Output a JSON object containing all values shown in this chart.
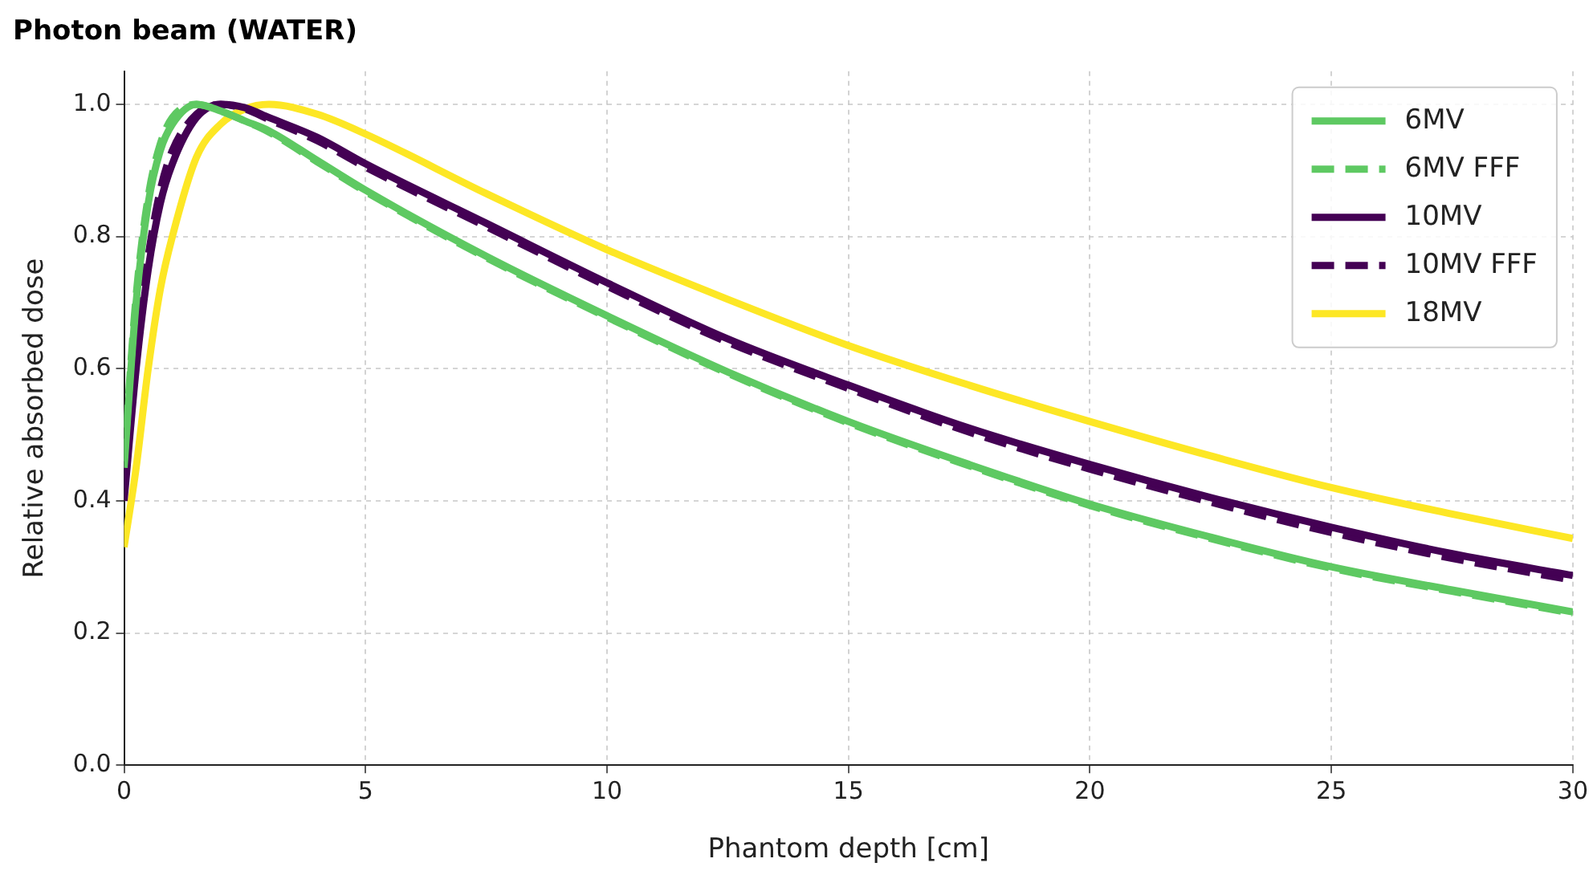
{
  "chart_data": {
    "type": "line",
    "title": "Photon beam (WATER)",
    "xlabel": "Phantom depth [cm]",
    "ylabel": "Relative absorbed dose",
    "x": [
      0,
      0.25,
      0.5,
      0.75,
      1,
      1.5,
      2,
      2.5,
      3,
      4,
      5,
      7.5,
      10,
      12.5,
      15,
      17.5,
      20,
      22.5,
      25,
      27.5,
      30
    ],
    "series": [
      {
        "name": "6MV",
        "color": "#5ec962",
        "line_style": "solid",
        "values": [
          0.45,
          0.7,
          0.85,
          0.93,
          0.97,
          1.0,
          0.99,
          0.975,
          0.96,
          0.915,
          0.87,
          0.77,
          0.68,
          0.595,
          0.52,
          0.455,
          0.395,
          0.345,
          0.3,
          0.265,
          0.232
        ]
      },
      {
        "name": "6MV FFF",
        "color": "#5ec962",
        "line_style": "dashed",
        "values": [
          0.46,
          0.71,
          0.86,
          0.94,
          0.98,
          1.0,
          0.99,
          0.975,
          0.958,
          0.913,
          0.868,
          0.768,
          0.678,
          0.593,
          0.518,
          0.453,
          0.393,
          0.343,
          0.298,
          0.263,
          0.23
        ]
      },
      {
        "name": "10MV",
        "color": "#440154",
        "line_style": "solid",
        "values": [
          0.4,
          0.6,
          0.75,
          0.85,
          0.91,
          0.98,
          1.0,
          0.995,
          0.98,
          0.95,
          0.91,
          0.82,
          0.73,
          0.645,
          0.575,
          0.51,
          0.455,
          0.405,
          0.36,
          0.32,
          0.287
        ]
      },
      {
        "name": "10MV FFF",
        "color": "#440154",
        "line_style": "dashed",
        "values": [
          0.42,
          0.63,
          0.77,
          0.87,
          0.93,
          0.985,
          1.0,
          0.993,
          0.977,
          0.945,
          0.905,
          0.815,
          0.725,
          0.64,
          0.57,
          0.504,
          0.448,
          0.398,
          0.352,
          0.313,
          0.28
        ]
      },
      {
        "name": "18MV",
        "color": "#fde725",
        "line_style": "solid",
        "values": [
          0.33,
          0.45,
          0.6,
          0.72,
          0.8,
          0.92,
          0.97,
          0.993,
          1.0,
          0.985,
          0.955,
          0.865,
          0.78,
          0.705,
          0.635,
          0.575,
          0.52,
          0.468,
          0.42,
          0.38,
          0.343
        ]
      }
    ],
    "xlim": [
      0,
      30
    ],
    "xticks": [
      0,
      5,
      10,
      15,
      20,
      25,
      30
    ],
    "ylim": [
      0,
      1.05
    ],
    "yticks": [
      {
        "value": 0,
        "label": "0.0"
      },
      {
        "value": 0.2,
        "label": "0.2"
      },
      {
        "value": 0.4,
        "label": "0.4"
      },
      {
        "value": 0.6,
        "label": "0.6"
      },
      {
        "value": 0.8,
        "label": "0.8"
      },
      {
        "value": 1,
        "label": "1.0"
      }
    ],
    "grid": true,
    "legend": "top right",
    "marker": "none"
  }
}
